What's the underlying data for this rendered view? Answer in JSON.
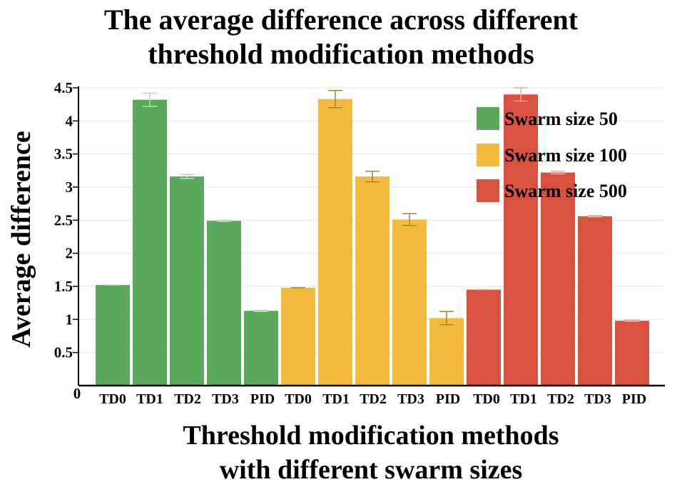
{
  "chart_data": {
    "type": "bar",
    "title_line1": "The average difference across different",
    "title_line2": "threshold modification methods",
    "xlabel_line1": "Threshold modification methods",
    "xlabel_line2": "with different swarm sizes",
    "ylabel": "Average difference",
    "ylim": [
      0,
      4.5
    ],
    "yticks": [
      "0",
      "0.5",
      "1",
      "1.5",
      "2",
      "2.5",
      "3",
      "3.5",
      "4",
      "4.5"
    ],
    "categories": [
      "TD0",
      "TD1",
      "TD2",
      "TD3",
      "PID"
    ],
    "series": [
      {
        "name": "Swarm size 50",
        "color": "#5aa85c",
        "errcolor": "#b8dcb5",
        "values": [
          1.52,
          4.32,
          3.16,
          2.49,
          1.13
        ],
        "errors": [
          0.0,
          0.1,
          0.03,
          0.01,
          0.01
        ]
      },
      {
        "name": "Swarm size 100",
        "color": "#f2bb3d",
        "errcolor": "#a8842a",
        "values": [
          1.48,
          4.33,
          3.16,
          2.51,
          1.02
        ],
        "errors": [
          0.0,
          0.13,
          0.08,
          0.09,
          0.1
        ]
      },
      {
        "name": "Swarm size 500",
        "color": "#d9513f",
        "errcolor": "#f0a89c",
        "values": [
          1.45,
          4.4,
          3.22,
          2.56,
          0.98
        ],
        "errors": [
          0.0,
          0.1,
          0.02,
          0.01,
          0.01
        ]
      }
    ]
  }
}
